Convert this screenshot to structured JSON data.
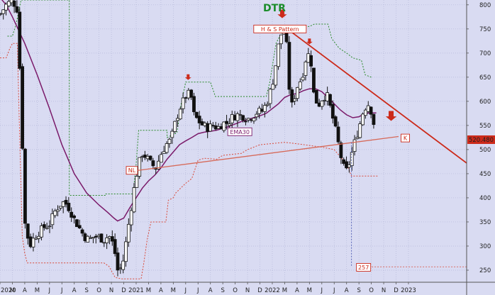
{
  "chart_data": {
    "type": "candlestick",
    "title": "DTR",
    "y_range": [
      225,
      810
    ],
    "y_ticks": [
      250,
      300,
      350,
      400,
      450,
      500,
      550,
      600,
      650,
      700,
      750,
      800
    ],
    "x_range": [
      0,
      37.7
    ],
    "x_ticks": [
      "2020",
      "M",
      "A",
      "M",
      "J",
      "J",
      "A",
      "S",
      "O",
      "N",
      "D",
      "2021",
      "M",
      "A",
      "M",
      "J",
      "J",
      "A",
      "S",
      "O",
      "N",
      "D",
      "2022",
      "M",
      "A",
      "M",
      "J",
      "J",
      "A",
      "S",
      "O",
      "N",
      "D",
      "2023"
    ],
    "last_price_label": "520.480",
    "annotations": {
      "pattern": "H & S Pattern",
      "ema": "EMA30",
      "neckline": "NL",
      "target": "K",
      "low_marker": "257"
    },
    "colors": {
      "background": "#d9dbf2",
      "candle": "#111111",
      "ema": "#7a1a6a",
      "trend": "#cc2a1a",
      "neckline": "#d66a5a",
      "upper_channel": "#2a8a2a",
      "lower_channel": "#d94a3a",
      "title": "#1a8c2a"
    },
    "price_path": [
      [
        0,
        780
      ],
      [
        0.5,
        800
      ],
      [
        1,
        810
      ],
      [
        1.4,
        790
      ],
      [
        1.7,
        600
      ],
      [
        2.0,
        350
      ],
      [
        2.4,
        300
      ],
      [
        2.8,
        320
      ],
      [
        3.2,
        330
      ],
      [
        3.6,
        340
      ],
      [
        4.0,
        345
      ],
      [
        4.4,
        370
      ],
      [
        4.8,
        385
      ],
      [
        5.2,
        392
      ],
      [
        5.6,
        378
      ],
      [
        6.0,
        355
      ],
      [
        6.4,
        338
      ],
      [
        6.8,
        320
      ],
      [
        7.2,
        313
      ],
      [
        7.6,
        320
      ],
      [
        8.0,
        318
      ],
      [
        8.4,
        313
      ],
      [
        8.8,
        322
      ],
      [
        9.2,
        300
      ],
      [
        9.5,
        250
      ],
      [
        9.8,
        255
      ],
      [
        10.0,
        275
      ],
      [
        10.3,
        330
      ],
      [
        10.6,
        380
      ],
      [
        10.9,
        430
      ],
      [
        11.2,
        470
      ],
      [
        11.5,
        492
      ],
      [
        11.8,
        485
      ],
      [
        12.2,
        470
      ],
      [
        12.6,
        462
      ],
      [
        13.0,
        490
      ],
      [
        13.4,
        510
      ],
      [
        13.8,
        520
      ],
      [
        14.2,
        560
      ],
      [
        14.6,
        590
      ],
      [
        15.0,
        610
      ],
      [
        15.4,
        618
      ],
      [
        15.6,
        575
      ],
      [
        16.0,
        560
      ],
      [
        16.4,
        550
      ],
      [
        16.8,
        545
      ],
      [
        17.2,
        550
      ],
      [
        17.6,
        545
      ],
      [
        18.0,
        555
      ],
      [
        18.4,
        555
      ],
      [
        18.8,
        568
      ],
      [
        19.2,
        572
      ],
      [
        19.6,
        570
      ],
      [
        20.0,
        563
      ],
      [
        20.4,
        570
      ],
      [
        20.8,
        578
      ],
      [
        21.2,
        580
      ],
      [
        21.6,
        600
      ],
      [
        22.0,
        635
      ],
      [
        22.3,
        680
      ],
      [
        22.6,
        735
      ],
      [
        22.9,
        745
      ],
      [
        23.1,
        740
      ],
      [
        23.3,
        640
      ],
      [
        23.6,
        590
      ],
      [
        24.0,
        630
      ],
      [
        24.4,
        650
      ],
      [
        24.8,
        700
      ],
      [
        25.1,
        690
      ],
      [
        25.3,
        620
      ],
      [
        25.7,
        590
      ],
      [
        26.0,
        605
      ],
      [
        26.4,
        615
      ],
      [
        26.8,
        575
      ],
      [
        27.2,
        530
      ],
      [
        27.5,
        490
      ],
      [
        27.9,
        450
      ],
      [
        28.2,
        470
      ],
      [
        28.6,
        510
      ],
      [
        29.0,
        545
      ],
      [
        29.4,
        585
      ],
      [
        29.8,
        595
      ],
      [
        30.1,
        570
      ],
      [
        30.4,
        520
      ]
    ],
    "ema30": [
      [
        0,
        815
      ],
      [
        0.5,
        800
      ],
      [
        1,
        775
      ],
      [
        2,
        720
      ],
      [
        3,
        655
      ],
      [
        4,
        585
      ],
      [
        5,
        510
      ],
      [
        6,
        450
      ],
      [
        7,
        410
      ],
      [
        8,
        385
      ],
      [
        8.7,
        370
      ],
      [
        9.2,
        358
      ],
      [
        9.5,
        352
      ],
      [
        10.0,
        358
      ],
      [
        10.5,
        380
      ],
      [
        11.0,
        400
      ],
      [
        11.5,
        420
      ],
      [
        12.0,
        435
      ],
      [
        12.5,
        447
      ],
      [
        13.0,
        462
      ],
      [
        13.5,
        480
      ],
      [
        14.0,
        495
      ],
      [
        14.5,
        510
      ],
      [
        15.0,
        518
      ],
      [
        15.5,
        525
      ],
      [
        16.0,
        533
      ],
      [
        16.5,
        536
      ],
      [
        17.0,
        538
      ],
      [
        17.5,
        540
      ],
      [
        18.0,
        544
      ],
      [
        18.5,
        548
      ],
      [
        19.0,
        553
      ],
      [
        19.5,
        558
      ],
      [
        20.0,
        562
      ],
      [
        20.5,
        566
      ],
      [
        21.0,
        570
      ],
      [
        21.5,
        575
      ],
      [
        22.0,
        585
      ],
      [
        22.5,
        595
      ],
      [
        23.0,
        608
      ],
      [
        23.5,
        614
      ],
      [
        24.0,
        616
      ],
      [
        24.5,
        622
      ],
      [
        25.0,
        626
      ],
      [
        25.5,
        626
      ],
      [
        26.0,
        620
      ],
      [
        26.5,
        608
      ],
      [
        27.0,
        595
      ],
      [
        27.5,
        582
      ],
      [
        28.0,
        572
      ],
      [
        28.5,
        566
      ],
      [
        29.0,
        568
      ],
      [
        29.5,
        575
      ],
      [
        30.0,
        576
      ],
      [
        30.4,
        576
      ]
    ],
    "upper_channel": [
      [
        0.6,
        735
      ],
      [
        1.0,
        735
      ],
      [
        1.3,
        760
      ],
      [
        1.7,
        810
      ],
      [
        3.0,
        810
      ],
      [
        5.0,
        810
      ],
      [
        5.6,
        810
      ],
      [
        5.6,
        405
      ],
      [
        8.5,
        405
      ],
      [
        8.5,
        408
      ],
      [
        10.8,
        408
      ],
      [
        10.8,
        420
      ],
      [
        11.0,
        470
      ],
      [
        11.2,
        540
      ],
      [
        13.5,
        540
      ],
      [
        13.5,
        525
      ],
      [
        14.3,
        535
      ],
      [
        14.6,
        590
      ],
      [
        15.0,
        640
      ],
      [
        17.0,
        640
      ],
      [
        17.4,
        610
      ],
      [
        21.5,
        610
      ],
      [
        21.8,
        640
      ],
      [
        22.3,
        720
      ],
      [
        23.0,
        755
      ],
      [
        25.0,
        755
      ],
      [
        25.4,
        760
      ],
      [
        26.5,
        760
      ],
      [
        26.8,
        730
      ],
      [
        27.4,
        710
      ],
      [
        28.0,
        700
      ],
      [
        28.5,
        690
      ],
      [
        29.2,
        685
      ],
      [
        29.5,
        655
      ],
      [
        30.0,
        650
      ]
    ],
    "lower_channel": [
      [
        0,
        690
      ],
      [
        0.5,
        690
      ],
      [
        0.8,
        710
      ],
      [
        1.0,
        720
      ],
      [
        1.4,
        720
      ],
      [
        1.8,
        320
      ],
      [
        2.0,
        285
      ],
      [
        2.2,
        265
      ],
      [
        8.4,
        265
      ],
      [
        8.8,
        258
      ],
      [
        9.3,
        235
      ],
      [
        9.8,
        232
      ],
      [
        11.4,
        232
      ],
      [
        11.6,
        262
      ],
      [
        11.9,
        315
      ],
      [
        12.2,
        350
      ],
      [
        13.4,
        350
      ],
      [
        13.6,
        395
      ],
      [
        14.0,
        400
      ],
      [
        14.2,
        410
      ],
      [
        15.0,
        430
      ],
      [
        15.5,
        440
      ],
      [
        16.0,
        478
      ],
      [
        16.5,
        482
      ],
      [
        17.5,
        480
      ],
      [
        18.0,
        488
      ],
      [
        19.5,
        492
      ],
      [
        20.0,
        500
      ],
      [
        20.5,
        505
      ],
      [
        21.0,
        510
      ],
      [
        23.0,
        515
      ],
      [
        24.0,
        512
      ],
      [
        26.0,
        505
      ],
      [
        27.0,
        500
      ],
      [
        28.0,
        470
      ],
      [
        28.4,
        445
      ],
      [
        30.5,
        445
      ]
    ]
  }
}
